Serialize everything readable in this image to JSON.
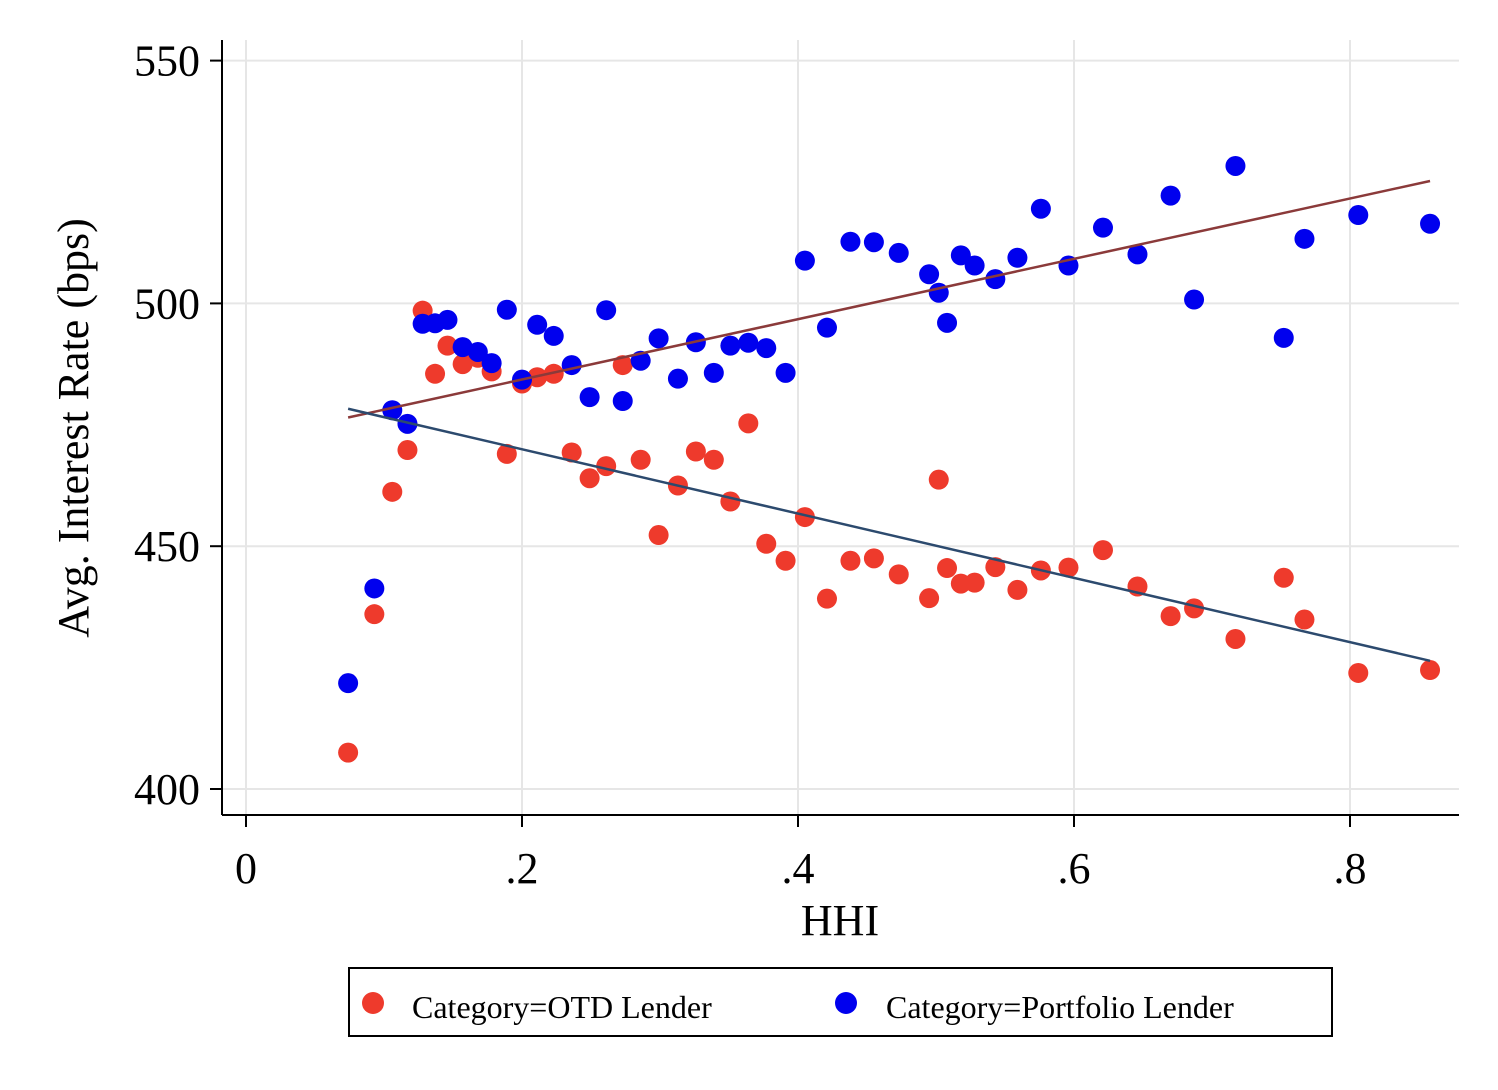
{
  "chart_data": {
    "type": "scatter",
    "title": "",
    "xlabel": "HHI",
    "ylabel": "Avg. Interest Rate (bps)",
    "xlim": [
      -0.02,
      0.875
    ],
    "ylim": [
      395,
      555
    ],
    "x_ticks": [
      {
        "value": 0,
        "label": "0"
      },
      {
        "value": 0.2,
        "label": ".2"
      },
      {
        "value": 0.4,
        "label": ".4"
      },
      {
        "value": 0.6,
        "label": ".6"
      },
      {
        "value": 0.8,
        "label": ".8"
      }
    ],
    "y_ticks": [
      {
        "value": 400,
        "label": "400"
      },
      {
        "value": 450,
        "label": "450"
      },
      {
        "value": 500,
        "label": "500"
      },
      {
        "value": 550,
        "label": "550"
      }
    ],
    "grid": true,
    "legend_position": "bottom",
    "series": [
      {
        "name": "Category=OTD Lender",
        "color": "#ee3a2c",
        "points": [
          [
            0.074,
            407.5
          ],
          [
            0.093,
            436.0
          ],
          [
            0.106,
            461.2
          ],
          [
            0.117,
            469.8
          ],
          [
            0.128,
            498.5
          ],
          [
            0.137,
            485.5
          ],
          [
            0.146,
            491.3
          ],
          [
            0.157,
            487.5
          ],
          [
            0.168,
            488.8
          ],
          [
            0.178,
            486.0
          ],
          [
            0.189,
            469.0
          ],
          [
            0.2,
            483.5
          ],
          [
            0.211,
            484.8
          ],
          [
            0.223,
            485.5
          ],
          [
            0.236,
            469.3
          ],
          [
            0.249,
            464.0
          ],
          [
            0.261,
            466.5
          ],
          [
            0.273,
            487.3
          ],
          [
            0.286,
            467.8
          ],
          [
            0.299,
            452.3
          ],
          [
            0.313,
            462.5
          ],
          [
            0.326,
            469.5
          ],
          [
            0.339,
            467.8
          ],
          [
            0.351,
            459.2
          ],
          [
            0.364,
            475.3
          ],
          [
            0.377,
            450.5
          ],
          [
            0.391,
            447.0
          ],
          [
            0.405,
            456.0
          ],
          [
            0.421,
            439.2
          ],
          [
            0.438,
            447.0
          ],
          [
            0.455,
            447.5
          ],
          [
            0.473,
            444.2
          ],
          [
            0.495,
            439.3
          ],
          [
            0.502,
            463.7
          ],
          [
            0.508,
            445.5
          ],
          [
            0.518,
            442.3
          ],
          [
            0.528,
            442.5
          ],
          [
            0.543,
            445.7
          ],
          [
            0.559,
            441.0
          ],
          [
            0.576,
            445.0
          ],
          [
            0.596,
            445.6
          ],
          [
            0.621,
            449.2
          ],
          [
            0.646,
            441.7
          ],
          [
            0.67,
            435.6
          ],
          [
            0.687,
            437.2
          ],
          [
            0.717,
            430.9
          ],
          [
            0.752,
            443.5
          ],
          [
            0.767,
            434.9
          ],
          [
            0.806,
            423.9
          ],
          [
            0.858,
            424.5
          ]
        ]
      },
      {
        "name": "Category=Portfolio Lender",
        "color": "#0000ee",
        "points": [
          [
            0.074,
            421.8
          ],
          [
            0.093,
            441.3
          ],
          [
            0.106,
            478.0
          ],
          [
            0.117,
            475.2
          ],
          [
            0.128,
            495.8
          ],
          [
            0.137,
            495.9
          ],
          [
            0.146,
            496.6
          ],
          [
            0.157,
            491.0
          ],
          [
            0.168,
            490.0
          ],
          [
            0.178,
            487.7
          ],
          [
            0.189,
            498.7
          ],
          [
            0.2,
            484.3
          ],
          [
            0.211,
            495.6
          ],
          [
            0.223,
            493.3
          ],
          [
            0.236,
            487.3
          ],
          [
            0.249,
            480.7
          ],
          [
            0.261,
            498.6
          ],
          [
            0.273,
            479.9
          ],
          [
            0.286,
            488.2
          ],
          [
            0.299,
            492.8
          ],
          [
            0.313,
            484.5
          ],
          [
            0.326,
            492.0
          ],
          [
            0.339,
            485.7
          ],
          [
            0.351,
            491.3
          ],
          [
            0.364,
            491.9
          ],
          [
            0.377,
            490.8
          ],
          [
            0.391,
            485.7
          ],
          [
            0.405,
            508.8
          ],
          [
            0.421,
            495.0
          ],
          [
            0.438,
            512.7
          ],
          [
            0.455,
            512.6
          ],
          [
            0.473,
            510.4
          ],
          [
            0.495,
            506.0
          ],
          [
            0.502,
            502.2
          ],
          [
            0.508,
            496.0
          ],
          [
            0.518,
            509.9
          ],
          [
            0.528,
            507.8
          ],
          [
            0.543,
            505.0
          ],
          [
            0.559,
            509.4
          ],
          [
            0.576,
            519.5
          ],
          [
            0.596,
            507.8
          ],
          [
            0.621,
            515.6
          ],
          [
            0.646,
            510.1
          ],
          [
            0.67,
            522.2
          ],
          [
            0.687,
            500.8
          ],
          [
            0.717,
            528.3
          ],
          [
            0.752,
            492.9
          ],
          [
            0.767,
            513.3
          ],
          [
            0.806,
            518.2
          ],
          [
            0.858,
            516.4
          ]
        ]
      }
    ],
    "fit_lines": [
      {
        "series": "Category=Portfolio Lender",
        "color": "#8b3a3a",
        "x": [
          0.074,
          0.858
        ],
        "y": [
          476.5,
          525.2
        ]
      },
      {
        "series": "Category=OTD Lender",
        "color": "#2c4a6e",
        "x": [
          0.074,
          0.858
        ],
        "y": [
          478.3,
          426.4
        ]
      }
    ]
  }
}
